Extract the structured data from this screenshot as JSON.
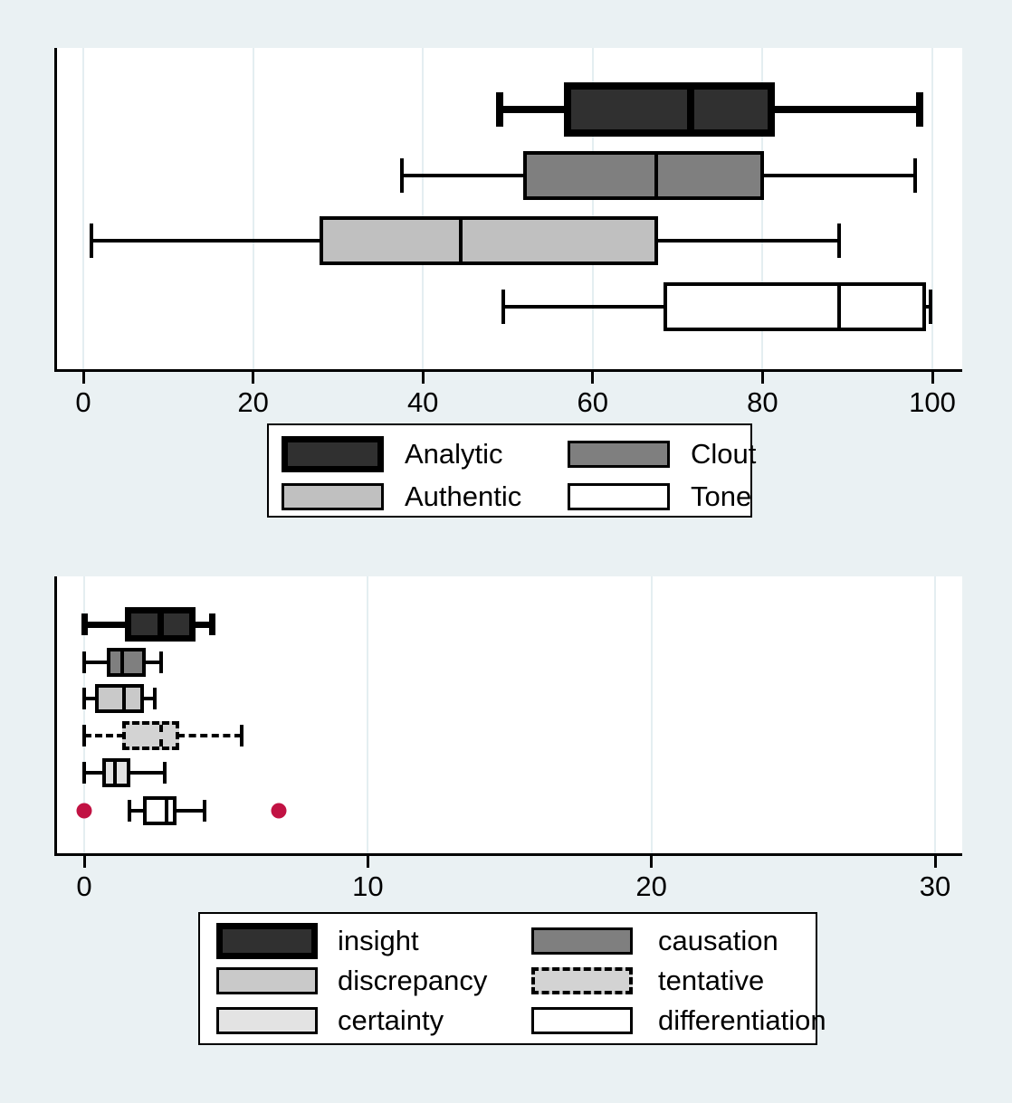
{
  "colors": {
    "page_background": "#eaf1f3",
    "plot_background": "#ffffff",
    "gridline": "#e4eef1",
    "line": "#000000",
    "outlier_marker": "#c11243"
  },
  "chart_data": [
    {
      "type": "boxplot",
      "orientation": "horizontal",
      "xlim": [
        0,
        100
      ],
      "xticks": [
        0,
        20,
        40,
        60,
        80,
        100
      ],
      "grid": true,
      "legend_position": "below",
      "legend_columns": 2,
      "series": [
        {
          "name": "Analytic",
          "fill": "#303030",
          "line_style": "thick",
          "whisker_low": 49,
          "q1": 57,
          "median": 71.5,
          "q3": 81,
          "whisker_high": 98.5,
          "outliers": []
        },
        {
          "name": "Clout",
          "fill": "#7f7f7f",
          "line_style": "solid",
          "whisker_low": 37.5,
          "q1": 52,
          "median": 67.5,
          "q3": 80,
          "whisker_high": 98,
          "outliers": []
        },
        {
          "name": "Authentic",
          "fill": "#c0c0c0",
          "line_style": "solid",
          "whisker_low": 1,
          "q1": 28,
          "median": 44.5,
          "q3": 67.5,
          "whisker_high": 89,
          "outliers": []
        },
        {
          "name": "Tone",
          "fill": "#ffffff",
          "line_style": "solid",
          "whisker_low": 49.5,
          "q1": 68.5,
          "median": 89,
          "q3": 99,
          "whisker_high": 99.8,
          "outliers": []
        }
      ]
    },
    {
      "type": "boxplot",
      "orientation": "horizontal",
      "xlim": [
        0,
        30
      ],
      "xticks": [
        0,
        10,
        20,
        30
      ],
      "grid": true,
      "legend_position": "below",
      "legend_columns": 2,
      "series": [
        {
          "name": "insight",
          "fill": "#303030",
          "line_style": "thick",
          "whisker_low": 0,
          "q1": 1.55,
          "median": 2.7,
          "q3": 3.8,
          "whisker_high": 4.5,
          "outliers": []
        },
        {
          "name": "causation",
          "fill": "#7f7f7f",
          "line_style": "solid",
          "whisker_low": 0,
          "q1": 0.85,
          "median": 1.35,
          "q3": 2.1,
          "whisker_high": 2.7,
          "outliers": []
        },
        {
          "name": "discrepancy",
          "fill": "#c9c9c9",
          "line_style": "solid",
          "whisker_low": 0,
          "q1": 0.45,
          "median": 1.4,
          "q3": 2.05,
          "whisker_high": 2.5,
          "outliers": []
        },
        {
          "name": "tentative",
          "fill": "#d3d3d3",
          "line_style": "dashed",
          "whisker_low": 0,
          "q1": 1.4,
          "median": 2.7,
          "q3": 3.3,
          "whisker_high": 5.55,
          "outliers": []
        },
        {
          "name": "certainty",
          "fill": "#e3e3e3",
          "line_style": "solid",
          "whisker_low": 0,
          "q1": 0.7,
          "median": 1.1,
          "q3": 1.55,
          "whisker_high": 2.85,
          "outliers": []
        },
        {
          "name": "differentiation",
          "fill": "#ffffff",
          "line_style": "solid",
          "whisker_low": 1.6,
          "q1": 2.15,
          "median": 2.9,
          "q3": 3.2,
          "whisker_high": 4.25,
          "outliers": [
            0,
            6.85
          ]
        }
      ]
    }
  ]
}
